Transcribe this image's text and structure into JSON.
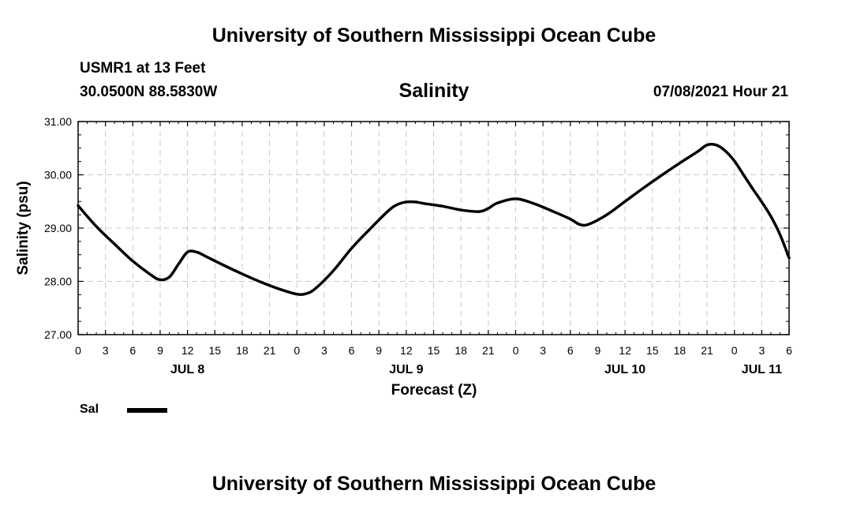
{
  "header": {
    "title": "University of Southern Mississippi Ocean Cube",
    "station": "USMR1 at 13 Feet",
    "coordinates": "30.0500N  88.5830W",
    "variable": "Salinity",
    "datetime": "07/08/2021 Hour 21"
  },
  "footer": {
    "title": "University of Southern Mississippi Ocean Cube"
  },
  "legend": {
    "label": "Sal",
    "color": "#000000"
  },
  "chart_data": {
    "type": "line",
    "title": "Salinity",
    "xlabel": "Forecast (Z)",
    "ylabel": "Salinity (psu)",
    "xlim": [
      0,
      78
    ],
    "ylim": [
      27.0,
      31.0
    ],
    "x_ticks": [
      0,
      3,
      6,
      9,
      12,
      15,
      18,
      21,
      24,
      27,
      30,
      33,
      36,
      39,
      42,
      45,
      48,
      51,
      54,
      57,
      60,
      63,
      66,
      69,
      72,
      75,
      78
    ],
    "x_tick_labels": [
      "0",
      "3",
      "6",
      "9",
      "12",
      "15",
      "18",
      "21",
      "0",
      "3",
      "6",
      "9",
      "12",
      "15",
      "18",
      "21",
      "0",
      "3",
      "6",
      "9",
      "12",
      "15",
      "18",
      "21",
      "0",
      "3",
      "6"
    ],
    "date_labels": [
      {
        "text": "JUL 8",
        "x": 12
      },
      {
        "text": "JUL 9",
        "x": 36
      },
      {
        "text": "JUL 10",
        "x": 60
      },
      {
        "text": "JUL 11",
        "x": 75
      }
    ],
    "y_ticks": [
      27.0,
      28.0,
      29.0,
      30.0,
      31.0
    ],
    "y_tick_labels": [
      "27.00",
      "28.00",
      "29.00",
      "30.00",
      "31.00"
    ],
    "grid": true,
    "series": [
      {
        "name": "Sal",
        "color": "#000000",
        "x": [
          0,
          2,
          4,
          6,
          8,
          9,
          10,
          11,
          12,
          13,
          14,
          16,
          18,
          20,
          22,
          24,
          25,
          26,
          28,
          30,
          32,
          34,
          35,
          36,
          37,
          38,
          40,
          42,
          44,
          45,
          46,
          48,
          50,
          52,
          54,
          55,
          56,
          58,
          60,
          62,
          64,
          66,
          68,
          69,
          70,
          71,
          72,
          73,
          74,
          75,
          76,
          77,
          78
        ],
        "values": [
          29.42,
          29.03,
          28.7,
          28.38,
          28.12,
          28.03,
          28.08,
          28.32,
          28.55,
          28.55,
          28.47,
          28.3,
          28.14,
          27.99,
          27.86,
          27.76,
          27.77,
          27.86,
          28.2,
          28.62,
          28.98,
          29.32,
          29.44,
          29.49,
          29.49,
          29.46,
          29.41,
          29.34,
          29.31,
          29.37,
          29.47,
          29.55,
          29.46,
          29.32,
          29.17,
          29.07,
          29.07,
          29.25,
          29.5,
          29.75,
          29.99,
          30.22,
          30.44,
          30.56,
          30.56,
          30.45,
          30.26,
          30.0,
          29.74,
          29.49,
          29.22,
          28.88,
          28.44
        ]
      }
    ]
  }
}
